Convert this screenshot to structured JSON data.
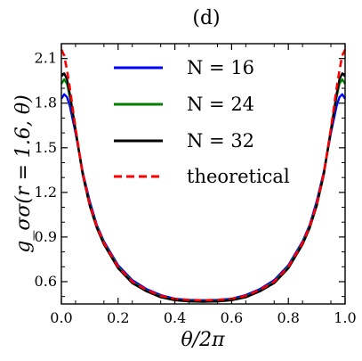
{
  "chart_data": {
    "type": "line",
    "title": "(d)",
    "xlabel": "θ/2π",
    "ylabel": "g_σσ(r = 1.6, θ)",
    "xlim": [
      0.0,
      1.0
    ],
    "ylim": [
      0.45,
      2.2
    ],
    "xticks": [
      "0.0",
      "0.2",
      "0.4",
      "0.6",
      "0.8",
      "1.0"
    ],
    "yticks": [
      "0.6",
      "0.9",
      "1.2",
      "1.5",
      "1.8",
      "2.1"
    ],
    "legend_position": "top",
    "x": [
      0.0,
      0.01,
      0.02,
      0.03,
      0.05,
      0.075,
      0.1,
      0.125,
      0.15,
      0.2,
      0.25,
      0.3,
      0.35,
      0.4,
      0.45,
      0.5,
      0.55,
      0.6,
      0.65,
      0.7,
      0.75,
      0.8,
      0.85,
      0.875,
      0.9,
      0.925,
      0.95,
      0.97,
      0.98,
      0.99,
      1.0
    ],
    "series": [
      {
        "name": "N = 16",
        "color": "#0000ff",
        "style": "solid",
        "values": [
          1.83,
          1.86,
          1.84,
          1.78,
          1.6,
          1.34,
          1.14,
          0.98,
          0.87,
          0.71,
          0.61,
          0.55,
          0.51,
          0.485,
          0.477,
          0.475,
          0.477,
          0.485,
          0.51,
          0.55,
          0.61,
          0.71,
          0.87,
          0.98,
          1.14,
          1.34,
          1.6,
          1.78,
          1.84,
          1.86,
          1.83
        ]
      },
      {
        "name": "N = 24",
        "color": "#008000",
        "style": "solid",
        "values": [
          1.93,
          1.96,
          1.93,
          1.84,
          1.62,
          1.33,
          1.12,
          0.97,
          0.86,
          0.7,
          0.6,
          0.54,
          0.5,
          0.478,
          0.47,
          0.468,
          0.47,
          0.478,
          0.5,
          0.54,
          0.6,
          0.7,
          0.86,
          0.97,
          1.12,
          1.33,
          1.62,
          1.84,
          1.93,
          1.96,
          1.93
        ]
      },
      {
        "name": "N = 32",
        "color": "#000000",
        "style": "solid",
        "values": [
          1.98,
          2.0,
          1.96,
          1.86,
          1.62,
          1.32,
          1.11,
          0.96,
          0.85,
          0.69,
          0.59,
          0.535,
          0.495,
          0.475,
          0.467,
          0.465,
          0.467,
          0.475,
          0.495,
          0.535,
          0.59,
          0.69,
          0.85,
          0.96,
          1.11,
          1.32,
          1.62,
          1.86,
          1.96,
          2.0,
          1.98
        ]
      },
      {
        "name": "theoretical",
        "color": "#ff0000",
        "style": "dashed",
        "values": [
          2.16,
          2.12,
          2.02,
          1.9,
          1.63,
          1.33,
          1.12,
          0.97,
          0.86,
          0.7,
          0.6,
          0.545,
          0.505,
          0.485,
          0.477,
          0.475,
          0.477,
          0.485,
          0.505,
          0.545,
          0.6,
          0.7,
          0.86,
          0.97,
          1.12,
          1.33,
          1.63,
          1.9,
          2.02,
          2.12,
          2.16
        ]
      }
    ]
  }
}
